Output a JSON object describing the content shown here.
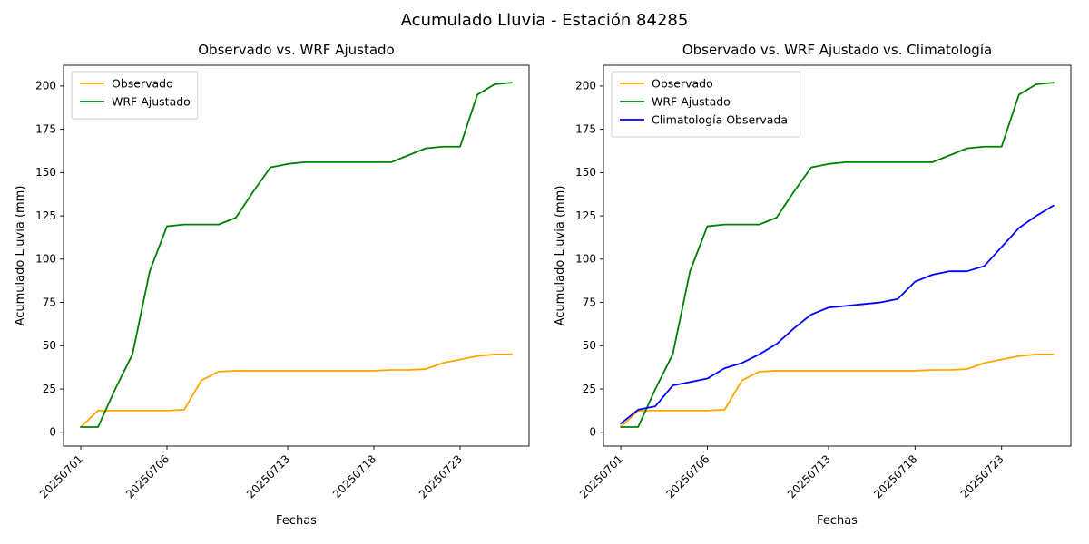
{
  "figure": {
    "suptitle": "Acumulado Lluvia - Estación 84285"
  },
  "chart_data": [
    {
      "type": "line",
      "title": "Observado vs. WRF Ajustado",
      "xlabel": "Fechas",
      "ylabel": "Acumulado Lluvia (mm)",
      "grid": false,
      "legend_position": "upper-left",
      "ylim": [
        -8,
        212
      ],
      "y_ticks": [
        0,
        25,
        50,
        75,
        100,
        125,
        150,
        175,
        200
      ],
      "x_tick_labels": [
        "20250701",
        "20250706",
        "20250713",
        "20250718",
        "20250723"
      ],
      "x_tick_indices": [
        0,
        5,
        12,
        17,
        22
      ],
      "x_dates": [
        "20250701",
        "20250702",
        "20250703",
        "20250704",
        "20250705",
        "20250706",
        "20250707",
        "20250708",
        "20250709",
        "20250710",
        "20250711",
        "20250712",
        "20250713",
        "20250714",
        "20250715",
        "20250716",
        "20250717",
        "20250718",
        "20250719",
        "20250720",
        "20250721",
        "20250722",
        "20250723",
        "20250724",
        "20250725",
        "20250726"
      ],
      "series": [
        {
          "name": "Observado",
          "color": "#FFA500",
          "values": [
            3,
            12.5,
            12.5,
            12.5,
            12.5,
            12.5,
            13,
            30,
            35,
            35.5,
            35.5,
            35.5,
            35.5,
            35.5,
            35.5,
            35.5,
            35.5,
            35.5,
            36,
            36,
            36.5,
            40,
            42,
            44,
            45,
            45
          ]
        },
        {
          "name": "WRF Ajustado",
          "color": "#008000",
          "values": [
            3,
            3,
            25,
            45,
            93,
            119,
            120,
            120,
            120,
            124,
            139,
            153,
            155,
            156,
            156,
            156,
            156,
            156,
            156,
            160,
            164,
            165,
            165,
            195,
            201,
            202
          ]
        }
      ]
    },
    {
      "type": "line",
      "title": "Observado vs. WRF Ajustado vs. Climatología",
      "xlabel": "Fechas",
      "ylabel": "Acumulado Lluvia (mm)",
      "grid": false,
      "legend_position": "upper-left",
      "ylim": [
        -8,
        212
      ],
      "y_ticks": [
        0,
        25,
        50,
        75,
        100,
        125,
        150,
        175,
        200
      ],
      "x_tick_labels": [
        "20250701",
        "20250706",
        "20250713",
        "20250718",
        "20250723"
      ],
      "x_tick_indices": [
        0,
        5,
        12,
        17,
        22
      ],
      "x_dates": [
        "20250701",
        "20250702",
        "20250703",
        "20250704",
        "20250705",
        "20250706",
        "20250707",
        "20250708",
        "20250709",
        "20250710",
        "20250711",
        "20250712",
        "20250713",
        "20250714",
        "20250715",
        "20250716",
        "20250717",
        "20250718",
        "20250719",
        "20250720",
        "20250721",
        "20250722",
        "20250723",
        "20250724",
        "20250725",
        "20250726"
      ],
      "series": [
        {
          "name": "Observado",
          "color": "#FFA500",
          "values": [
            3,
            12.5,
            12.5,
            12.5,
            12.5,
            12.5,
            13,
            30,
            35,
            35.5,
            35.5,
            35.5,
            35.5,
            35.5,
            35.5,
            35.5,
            35.5,
            35.5,
            36,
            36,
            36.5,
            40,
            42,
            44,
            45,
            45
          ]
        },
        {
          "name": "WRF Ajustado",
          "color": "#008000",
          "values": [
            3,
            3,
            25,
            45,
            93,
            119,
            120,
            120,
            120,
            124,
            139,
            153,
            155,
            156,
            156,
            156,
            156,
            156,
            156,
            160,
            164,
            165,
            165,
            195,
            201,
            202
          ]
        },
        {
          "name": "Climatología Observada",
          "color": "#0000FF",
          "values": [
            5,
            13,
            15,
            27,
            29,
            31,
            37,
            40,
            45,
            51,
            60,
            68,
            72,
            73,
            74,
            75,
            77,
            87,
            91,
            93,
            93,
            96,
            107,
            118,
            125,
            131
          ]
        }
      ]
    }
  ]
}
